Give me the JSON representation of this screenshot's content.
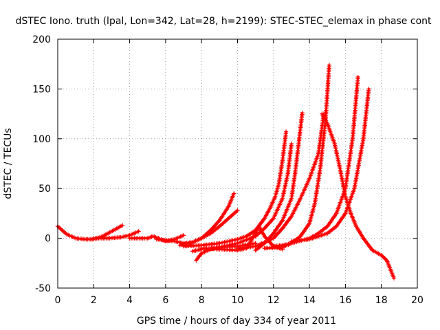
{
  "chart_data": {
    "type": "scatter",
    "title": "dSTEC Iono. truth (lpal, Lon=342, Lat=28, h=2199): STEC-STEC_elemax in phase cont",
    "xlabel": "GPS time / hours of day 334 of year 2011",
    "ylabel": "dSTEC  / TECUs",
    "xlim": [
      0,
      20
    ],
    "ylim": [
      -50,
      200
    ],
    "xticks": [
      0,
      2,
      4,
      6,
      8,
      10,
      12,
      14,
      16,
      18,
      20
    ],
    "yticks": [
      -50,
      0,
      50,
      100,
      150,
      200
    ],
    "grid": true,
    "marker": "plus",
    "color": "#ff0000",
    "series": [
      {
        "x": [
          0.0,
          0.5,
          1.0,
          1.5,
          2.0,
          2.5,
          2.8,
          3.2,
          3.6
        ],
        "y": [
          12,
          4,
          0,
          -1,
          -1,
          2,
          5,
          9,
          13
        ]
      },
      {
        "x": [
          2.0,
          2.8,
          3.5,
          4.0,
          4.5
        ],
        "y": [
          0,
          0,
          1,
          3,
          7
        ]
      },
      {
        "x": [
          4.0,
          5.0,
          5.3,
          5.6,
          6.0,
          6.5,
          7.0
        ],
        "y": [
          0,
          0,
          2,
          0,
          -3,
          -1,
          3
        ]
      },
      {
        "x": [
          5.5,
          6.5,
          7.0,
          7.5,
          8.0,
          8.5,
          9.0,
          9.5,
          9.8
        ],
        "y": [
          -1,
          -3,
          -5,
          -4,
          0,
          8,
          18,
          32,
          45
        ]
      },
      {
        "x": [
          6.8,
          7.5,
          8.0,
          8.5,
          9.0,
          9.5,
          10.0
        ],
        "y": [
          -7,
          -4,
          0,
          5,
          12,
          20,
          28
        ]
      },
      {
        "x": [
          7.0,
          8.0,
          9.0,
          10.0,
          10.5,
          11.0,
          11.5,
          11.8,
          12.1,
          12.3,
          12.5,
          12.7
        ],
        "y": [
          -8,
          -7,
          -5,
          -1,
          2,
          8,
          20,
          30,
          42,
          55,
          78,
          107
        ]
      },
      {
        "x": [
          7.5,
          8.0,
          9.0,
          10.0,
          11.0,
          11.5,
          12.0,
          12.5,
          12.8,
          13.0
        ],
        "y": [
          -13,
          -11,
          -9,
          -5,
          2,
          10,
          20,
          40,
          65,
          95
        ]
      },
      {
        "x": [
          7.7,
          8.0,
          8.5,
          9.0,
          10.0,
          11.0
        ],
        "y": [
          -22,
          -15,
          -11,
          -9,
          -8,
          -5
        ]
      },
      {
        "x": [
          8.0,
          9.0,
          10.0,
          10.5,
          11.0,
          11.2,
          11.5,
          12.0,
          12.5
        ],
        "y": [
          -10,
          -11,
          -12,
          -10,
          5,
          12,
          2,
          -8,
          -11
        ]
      },
      {
        "x": [
          10.0,
          11.0,
          12.0,
          12.5,
          13.0,
          13.5,
          14.0,
          14.5,
          14.8
        ],
        "y": [
          -10,
          -8,
          0,
          10,
          22,
          40,
          60,
          85,
          125
        ]
      },
      {
        "x": [
          11.0,
          11.5,
          12.0,
          12.5,
          13.0,
          13.2,
          13.4,
          13.6
        ],
        "y": [
          -12,
          -5,
          5,
          18,
          40,
          65,
          95,
          126
        ]
      },
      {
        "x": [
          11.5,
          12.5,
          13.0,
          13.5,
          14.0,
          14.3,
          14.6,
          14.9,
          15.1
        ],
        "y": [
          -10,
          -9,
          -5,
          2,
          15,
          35,
          70,
          120,
          174
        ]
      },
      {
        "x": [
          12.0,
          12.5,
          13.0,
          14.0,
          14.5,
          15.0,
          15.5,
          16.0,
          16.4,
          16.7
        ],
        "y": [
          -8,
          -7,
          -5,
          0,
          5,
          12,
          25,
          50,
          100,
          162
        ]
      },
      {
        "x": [
          13.0,
          14.0,
          15.0,
          15.5,
          16.0,
          16.5,
          17.0,
          17.3
        ],
        "y": [
          -3,
          -1,
          5,
          12,
          25,
          50,
          100,
          150
        ]
      },
      {
        "x": [
          14.7,
          15.0,
          15.4,
          15.7,
          16.0,
          16.3,
          16.6,
          17.0,
          17.5,
          18.0,
          18.3,
          18.7
        ],
        "y": [
          125,
          115,
          95,
          70,
          42,
          25,
          12,
          0,
          -12,
          -17,
          -22,
          -40
        ]
      }
    ]
  }
}
